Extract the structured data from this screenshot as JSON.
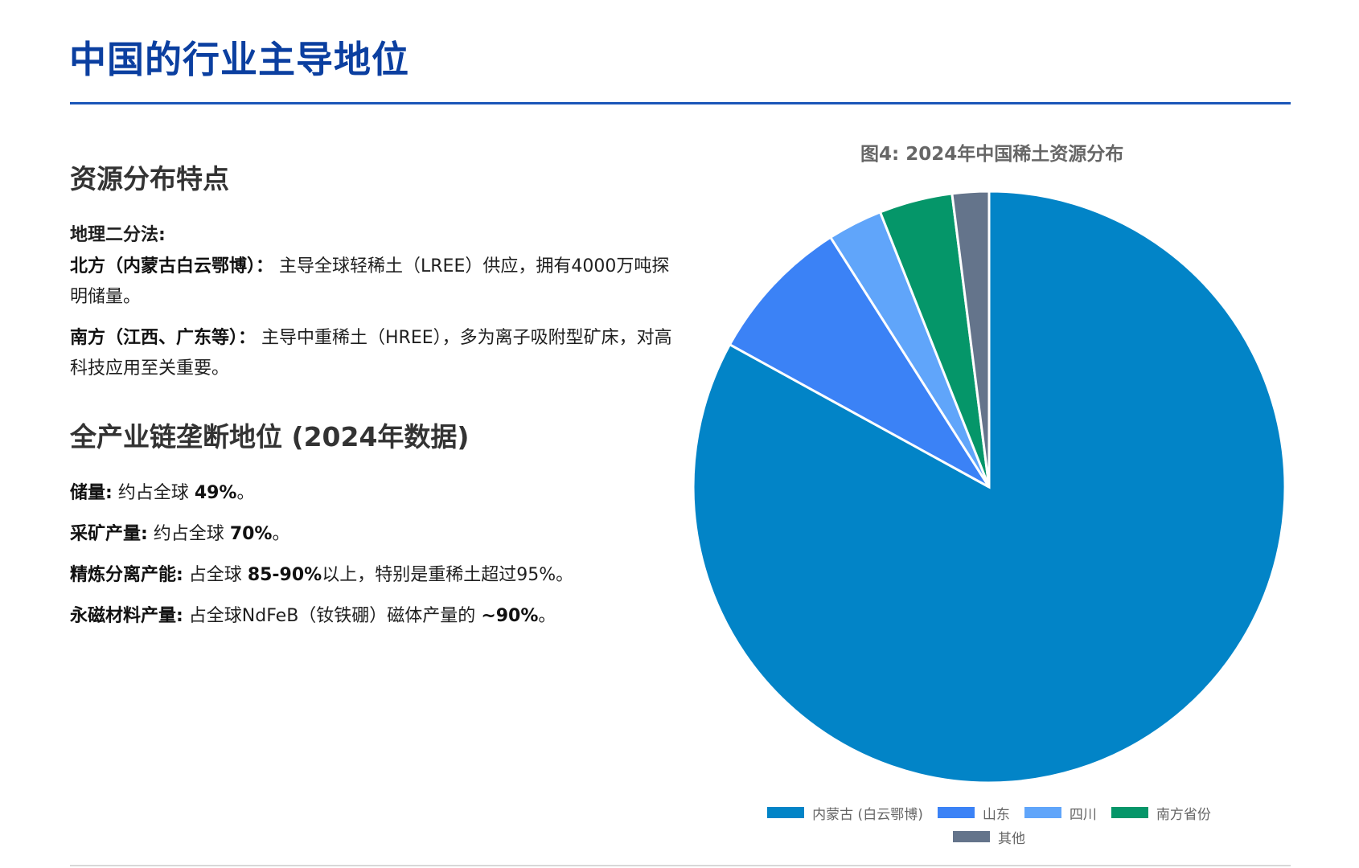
{
  "page": {
    "title": "中国的行业主导地位"
  },
  "section1": {
    "heading": "资源分布特点",
    "label": "地理二分法:",
    "north": {
      "label": "北方（内蒙古白云鄂博）：",
      "text": " 主导全球轻稀土（LREE）供应，拥有4000万吨探明储量。"
    },
    "south": {
      "label": "南方（江西、广东等）：",
      "text": " 主导中重稀土（HREE），多为离子吸附型矿床，对高科技应用至关重要。"
    }
  },
  "section2": {
    "heading": "全产业链垄断地位 (2024年数据)",
    "items": [
      {
        "label": "储量:",
        "pre": " 约占全球 ",
        "value": "49%",
        "post": "。"
      },
      {
        "label": "采矿产量:",
        "pre": " 约占全球 ",
        "value": "70%",
        "post": "。"
      },
      {
        "label": "精炼分离产能:",
        "pre": " 占全球 ",
        "value": "85-90%",
        "post": "以上，特别是重稀土超过95%。"
      },
      {
        "label": "永磁材料产量:",
        "pre": " 占全球NdFeB（钕铁硼）磁体产量的 ",
        "value": "~90%",
        "post": "。"
      }
    ]
  },
  "chart_data": {
    "type": "pie",
    "title": "图4: 2024年中国稀土资源分布",
    "categories": [
      "内蒙古 (白云鄂博)",
      "山东",
      "四川",
      "南方省份",
      "其他"
    ],
    "values": [
      83,
      8,
      3,
      4,
      2
    ],
    "colors": [
      "#0284c7",
      "#3b82f6",
      "#60a5fa",
      "#059669",
      "#64748b"
    ],
    "start_angle_deg": 0,
    "direction": "clockwise",
    "legend_position": "bottom"
  }
}
